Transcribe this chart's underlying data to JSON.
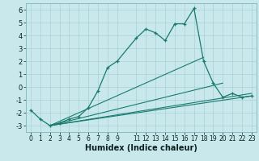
{
  "xlabel": "Humidex (Indice chaleur)",
  "bg_color": "#c8e8ec",
  "line_color": "#1a7a6e",
  "grid_color": "#aad0d8",
  "xlim": [
    -0.5,
    23.5
  ],
  "ylim": [
    -3.5,
    6.5
  ],
  "yticks": [
    -3,
    -2,
    -1,
    0,
    1,
    2,
    3,
    4,
    5,
    6
  ],
  "xtick_vals": [
    0,
    1,
    2,
    3,
    4,
    5,
    6,
    7,
    8,
    9,
    11,
    12,
    13,
    14,
    15,
    16,
    17,
    18,
    19,
    20,
    21,
    22,
    23
  ],
  "xtick_labels": [
    "0",
    "1",
    "2",
    "3",
    "4",
    "5",
    "6",
    "7",
    "8",
    "9",
    "11",
    "12",
    "13",
    "14",
    "15",
    "16",
    "17",
    "18",
    "19",
    "20",
    "21",
    "22",
    "23"
  ],
  "main_x": [
    0,
    1,
    2,
    3,
    4,
    5,
    6,
    7,
    8,
    9,
    11,
    12,
    13,
    14,
    15,
    16,
    17,
    18,
    19,
    20,
    21,
    22,
    23
  ],
  "main_y": [
    -1.8,
    -2.5,
    -3.0,
    -2.8,
    -2.5,
    -2.3,
    -1.6,
    -0.3,
    1.5,
    2.0,
    3.8,
    4.5,
    4.2,
    3.6,
    4.9,
    4.9,
    6.1,
    2.0,
    0.3,
    -0.8,
    -0.5,
    -0.8,
    -0.7
  ],
  "fan_lines": [
    {
      "x": [
        2,
        23
      ],
      "y": [
        -3.0,
        -0.7
      ]
    },
    {
      "x": [
        2,
        23
      ],
      "y": [
        -3.0,
        -0.5
      ]
    },
    {
      "x": [
        2,
        20
      ],
      "y": [
        -3.0,
        0.3
      ]
    },
    {
      "x": [
        2,
        18
      ],
      "y": [
        -3.0,
        2.3
      ]
    }
  ],
  "xlabel_fontsize": 7,
  "tick_fontsize": 5.5,
  "ytick_fontsize": 6
}
